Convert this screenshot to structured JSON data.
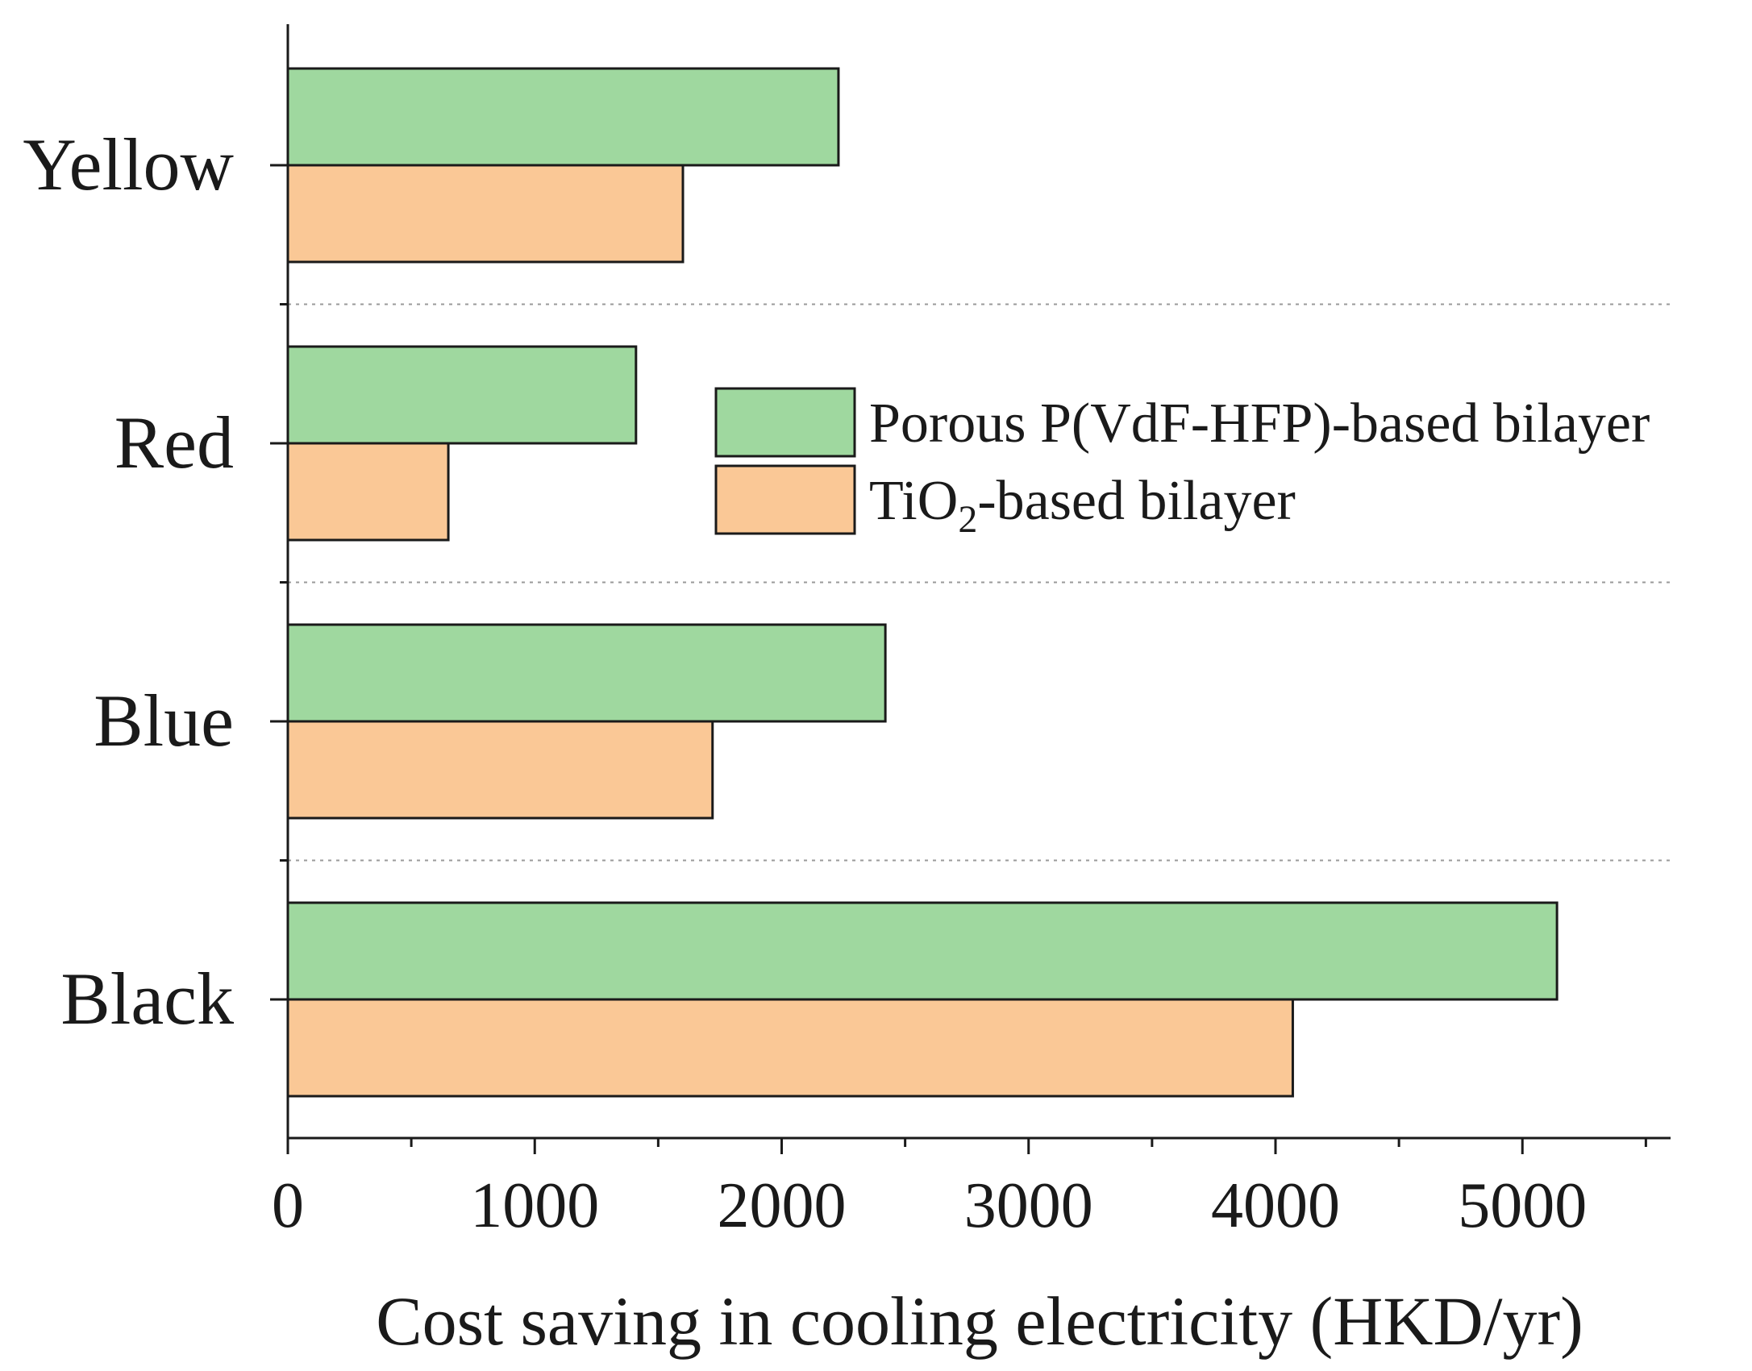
{
  "chart_data": {
    "type": "bar",
    "orientation": "horizontal",
    "title": "",
    "categories": [
      "Yellow",
      "Red",
      "Blue",
      "Black"
    ],
    "series": [
      {
        "name": "Porous P(VdF-HFP)-based bilayer",
        "color": "#9fd89f",
        "values": [
          2230,
          1410,
          2420,
          5140
        ]
      },
      {
        "name": "TiO2-based bilayer",
        "label_prefix": "TiO",
        "label_subscript": "2",
        "label_suffix": "-based bilayer",
        "color": "#fac896",
        "values": [
          1600,
          650,
          1720,
          4070
        ]
      }
    ],
    "xlabel": "Cost saving in cooling electricity (HKD/yr)",
    "ylabel": "",
    "xlim": [
      0,
      5600
    ],
    "xticks": [
      "0",
      "1000",
      "2000",
      "3000",
      "4000",
      "5000"
    ],
    "grid": "dotted separators between categories",
    "legend_position": "center-right"
  }
}
